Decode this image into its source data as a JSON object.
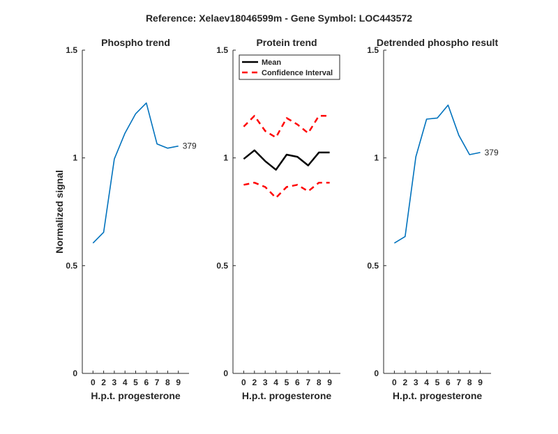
{
  "figure": {
    "suptitle": "Reference:  Xelaev18046599m - Gene Symbol:  LOC443572"
  },
  "chart_data": [
    {
      "type": "line",
      "title": "Phospho trend",
      "xlabel": "H.p.t. progesterone",
      "ylabel": "Normalized signal",
      "ylim": [
        0,
        1.5
      ],
      "yticks": [
        "0",
        "0.5",
        "1",
        "1.5"
      ],
      "xticks": [
        "0",
        "2",
        "3",
        "4",
        "5",
        "6",
        "7",
        "8",
        "9"
      ],
      "series": [
        {
          "color": "#0072BD",
          "style": "solid",
          "values": [
            0.605,
            0.655,
            0.995,
            1.115,
            1.205,
            1.255,
            1.065,
            1.045,
            1.055
          ]
        }
      ],
      "annotation": "379"
    },
    {
      "type": "line",
      "title": "Protein trend",
      "xlabel": "H.p.t. progesterone",
      "ylabel": "",
      "ylim": [
        0,
        1.5
      ],
      "yticks": [
        "0",
        "0.5",
        "1",
        "1.5"
      ],
      "xticks": [
        "0",
        "2",
        "3",
        "4",
        "5",
        "6",
        "7",
        "8",
        "9"
      ],
      "legend": {
        "position": "top-left",
        "entries": [
          "Mean",
          "Confidence Interval"
        ]
      },
      "series": [
        {
          "name": "Mean",
          "color": "#000000",
          "style": "solid",
          "values": [
            0.995,
            1.035,
            0.985,
            0.945,
            1.015,
            1.005,
            0.965,
            1.025,
            1.025
          ]
        },
        {
          "name": "Confidence Interval",
          "color": "#FF0000",
          "style": "dashed",
          "values": [
            1.145,
            1.195,
            1.125,
            1.095,
            1.185,
            1.155,
            1.115,
            1.195,
            1.195
          ]
        },
        {
          "name": "Confidence Interval",
          "color": "#FF0000",
          "style": "dashed",
          "values": [
            0.875,
            0.885,
            0.865,
            0.815,
            0.865,
            0.875,
            0.845,
            0.885,
            0.885
          ]
        }
      ]
    },
    {
      "type": "line",
      "title": "Detrended phospho result",
      "xlabel": "H.p.t. progesterone",
      "ylabel": "",
      "ylim": [
        0,
        1.5
      ],
      "yticks": [
        "0",
        "0.5",
        "1",
        "1.5"
      ],
      "xticks": [
        "0",
        "2",
        "3",
        "4",
        "5",
        "6",
        "7",
        "8",
        "9"
      ],
      "series": [
        {
          "color": "#0072BD",
          "style": "solid",
          "values": [
            0.605,
            0.635,
            1.005,
            1.18,
            1.185,
            1.245,
            1.105,
            1.015,
            1.025
          ]
        }
      ],
      "annotation": "379"
    }
  ]
}
